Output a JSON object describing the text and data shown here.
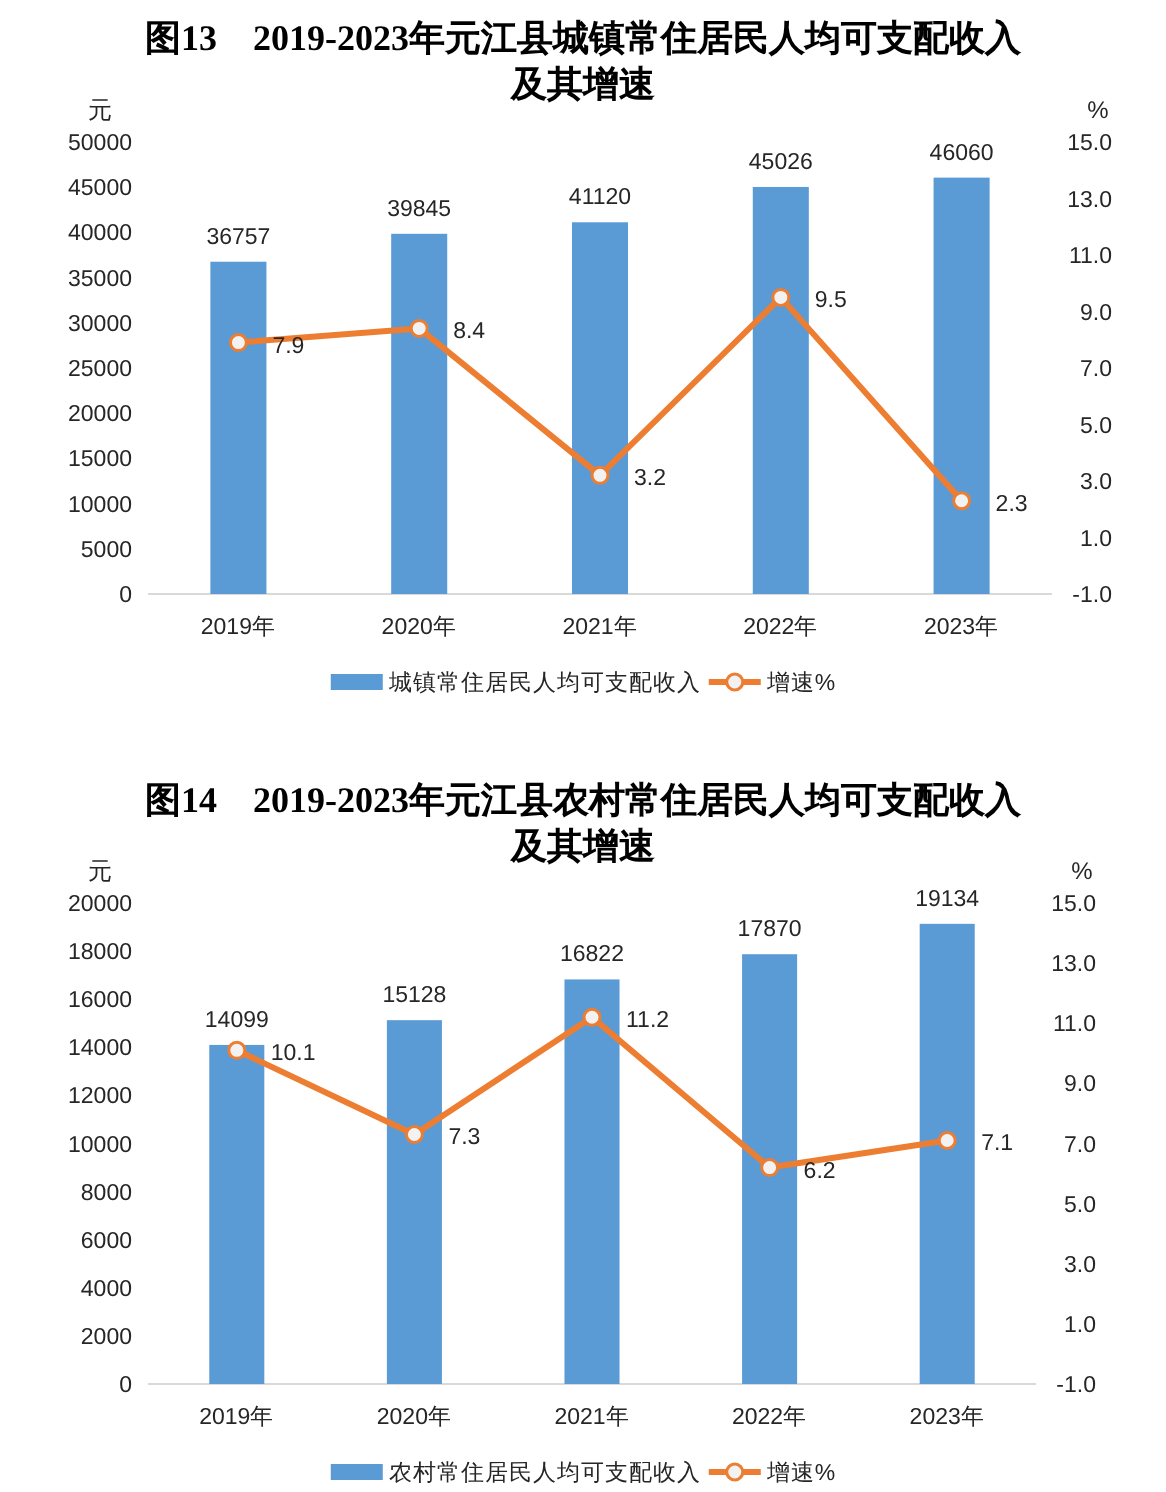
{
  "chart_data": [
    {
      "type": "bar",
      "title": "图13　2019-2023年元江县城镇常住居民人均可支配收入及其增速",
      "ylabel": "元",
      "y2label": "%",
      "categories": [
        "2019年",
        "2020年",
        "2021年",
        "2022年",
        "2023年"
      ],
      "series": [
        {
          "name": "城镇常住居民人均可支配收入",
          "color": "#5b9bd5",
          "values": [
            36757,
            39845,
            41120,
            45026,
            46060
          ]
        },
        {
          "name": "增速%",
          "type": "line",
          "axis": "y2",
          "color": "#ed7d31",
          "values": [
            7.9,
            8.4,
            3.2,
            9.5,
            2.3
          ]
        }
      ],
      "ylim": [
        0,
        50000
      ],
      "yticks": [
        0,
        5000,
        10000,
        15000,
        20000,
        25000,
        30000,
        35000,
        40000,
        45000,
        50000
      ],
      "y2lim": [
        -1,
        15
      ],
      "y2ticks": [
        {
          "value": -1,
          "label": "-1.0"
        },
        {
          "value": 1,
          "label": "1.0"
        },
        {
          "value": 3,
          "label": "3.0"
        },
        {
          "value": 5,
          "label": "5.0"
        },
        {
          "value": 7,
          "label": "7.0"
        },
        {
          "value": 9,
          "label": "9.0"
        },
        {
          "value": 11,
          "label": "11.0"
        },
        {
          "value": 13,
          "label": "13.0"
        },
        {
          "value": 15,
          "label": "15.0"
        }
      ],
      "marker": "circle",
      "data_labels": true,
      "legend": "bottom"
    },
    {
      "type": "bar",
      "title": "图14　2019-2023年元江县农村常住居民人均可支配收入及其增速",
      "ylabel": "元",
      "y2label": "%",
      "categories": [
        "2019年",
        "2020年",
        "2021年",
        "2022年",
        "2023年"
      ],
      "series": [
        {
          "name": "农村常住居民人均可支配收入",
          "color": "#5b9bd5",
          "values": [
            14099,
            15128,
            16822,
            17870,
            19134
          ]
        },
        {
          "name": "增速%",
          "type": "line",
          "axis": "y2",
          "color": "#ed7d31",
          "values": [
            10.1,
            7.3,
            11.2,
            6.2,
            7.1
          ]
        }
      ],
      "ylim": [
        0,
        20000
      ],
      "yticks": [
        0,
        2000,
        4000,
        6000,
        8000,
        10000,
        12000,
        14000,
        16000,
        18000,
        20000
      ],
      "y2lim": [
        -1,
        15
      ],
      "y2ticks": [
        {
          "value": -1,
          "label": "-1.0"
        },
        {
          "value": 1,
          "label": "1.0"
        },
        {
          "value": 3,
          "label": "3.0"
        },
        {
          "value": 5,
          "label": "5.0"
        },
        {
          "value": 7,
          "label": "7.0"
        },
        {
          "value": 9,
          "label": "9.0"
        },
        {
          "value": 11,
          "label": "11.0"
        },
        {
          "value": 13,
          "label": "13.0"
        },
        {
          "value": 15,
          "label": "15.0"
        }
      ],
      "marker": "circle",
      "data_labels": true,
      "legend": "bottom"
    }
  ]
}
